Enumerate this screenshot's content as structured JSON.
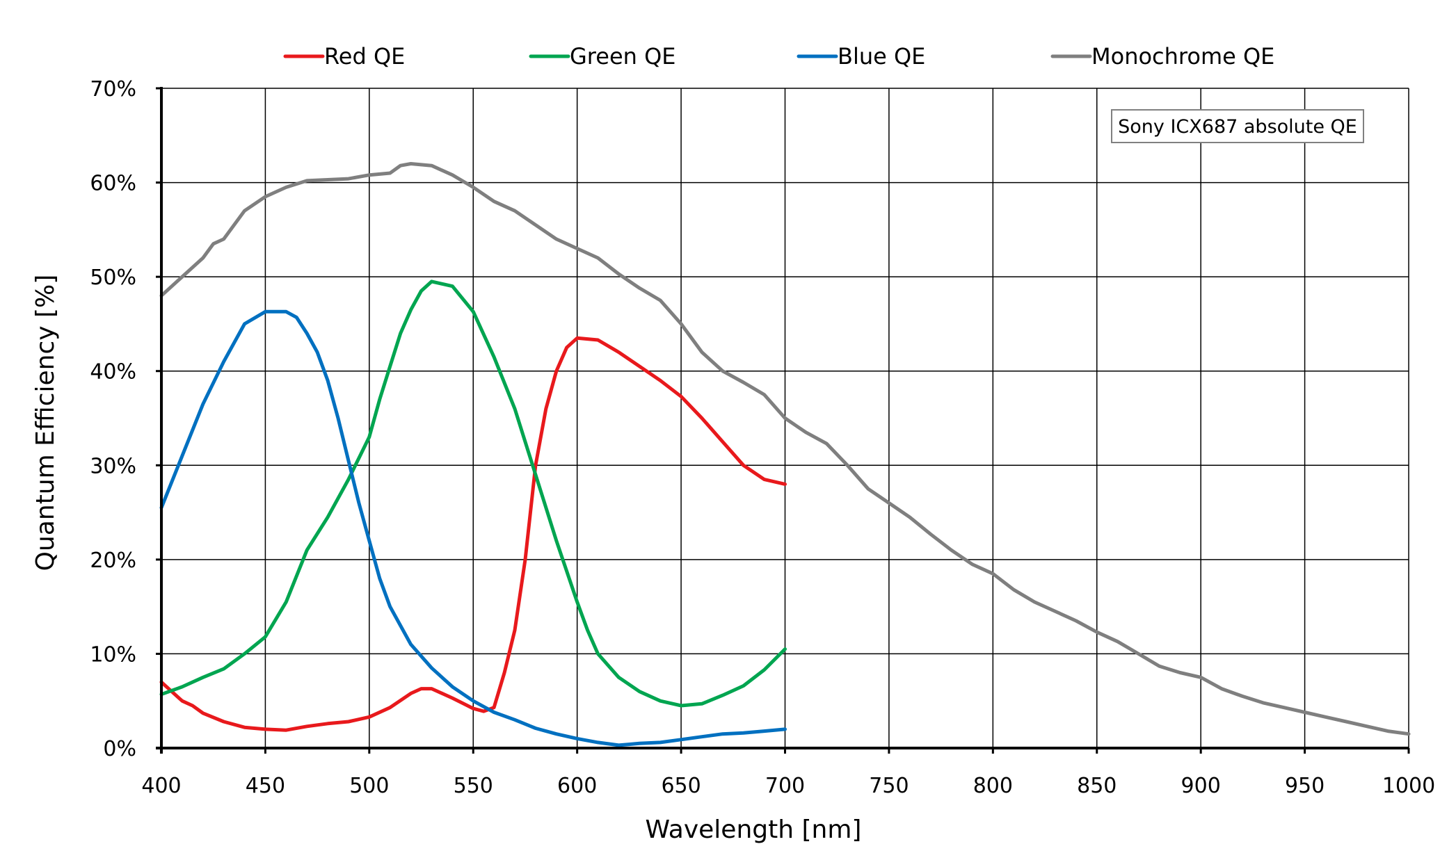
{
  "chart_data": {
    "type": "line",
    "title": "",
    "xlabel": "Wavelength [nm]",
    "ylabel": "Quantum Efficiency [%]",
    "xlim": [
      400,
      1000
    ],
    "ylim": [
      0,
      70
    ],
    "x_ticks": [
      "400",
      "450",
      "500",
      "550",
      "600",
      "650",
      "700",
      "750",
      "800",
      "850",
      "900",
      "950",
      "1000"
    ],
    "y_ticks": [
      "0%",
      "10%",
      "20%",
      "30%",
      "40%",
      "50%",
      "60%",
      "70%"
    ],
    "grid": true,
    "legend_position": "top",
    "annotation": "Sony ICX687 absolute QE",
    "series": [
      {
        "name": "Red QE",
        "color": "#e8191c",
        "points": [
          [
            400,
            7.0
          ],
          [
            405,
            6.0
          ],
          [
            410,
            5.0
          ],
          [
            415,
            4.5
          ],
          [
            420,
            3.7
          ],
          [
            430,
            2.8
          ],
          [
            440,
            2.2
          ],
          [
            450,
            2.0
          ],
          [
            460,
            1.9
          ],
          [
            470,
            2.3
          ],
          [
            480,
            2.6
          ],
          [
            490,
            2.8
          ],
          [
            500,
            3.3
          ],
          [
            510,
            4.3
          ],
          [
            520,
            5.8
          ],
          [
            525,
            6.3
          ],
          [
            530,
            6.3
          ],
          [
            540,
            5.3
          ],
          [
            550,
            4.2
          ],
          [
            555,
            3.9
          ],
          [
            560,
            4.3
          ],
          [
            565,
            8.0
          ],
          [
            570,
            12.5
          ],
          [
            575,
            20.0
          ],
          [
            580,
            30.0
          ],
          [
            585,
            36.0
          ],
          [
            590,
            40.0
          ],
          [
            595,
            42.5
          ],
          [
            600,
            43.5
          ],
          [
            610,
            43.3
          ],
          [
            620,
            42.0
          ],
          [
            630,
            40.5
          ],
          [
            640,
            39.0
          ],
          [
            650,
            37.3
          ],
          [
            660,
            35.0
          ],
          [
            670,
            32.5
          ],
          [
            680,
            30.0
          ],
          [
            690,
            28.5
          ],
          [
            700,
            28.0
          ]
        ]
      },
      {
        "name": "Green QE",
        "color": "#00a550",
        "points": [
          [
            400,
            5.7
          ],
          [
            410,
            6.5
          ],
          [
            420,
            7.5
          ],
          [
            430,
            8.4
          ],
          [
            440,
            10.0
          ],
          [
            450,
            11.8
          ],
          [
            460,
            15.5
          ],
          [
            470,
            21.0
          ],
          [
            480,
            24.5
          ],
          [
            490,
            28.5
          ],
          [
            500,
            33.0
          ],
          [
            505,
            37.0
          ],
          [
            510,
            40.5
          ],
          [
            515,
            44.0
          ],
          [
            520,
            46.5
          ],
          [
            525,
            48.5
          ],
          [
            530,
            49.5
          ],
          [
            540,
            49.0
          ],
          [
            550,
            46.3
          ],
          [
            560,
            41.5
          ],
          [
            570,
            36.0
          ],
          [
            580,
            29.0
          ],
          [
            590,
            22.0
          ],
          [
            600,
            15.5
          ],
          [
            605,
            12.5
          ],
          [
            610,
            10.0
          ],
          [
            620,
            7.5
          ],
          [
            630,
            6.0
          ],
          [
            640,
            5.0
          ],
          [
            650,
            4.5
          ],
          [
            660,
            4.7
          ],
          [
            670,
            5.6
          ],
          [
            680,
            6.6
          ],
          [
            690,
            8.3
          ],
          [
            700,
            10.5
          ]
        ]
      },
      {
        "name": "Blue QE",
        "color": "#0070c0",
        "points": [
          [
            400,
            25.5
          ],
          [
            410,
            31.0
          ],
          [
            420,
            36.5
          ],
          [
            430,
            41.0
          ],
          [
            440,
            45.0
          ],
          [
            450,
            46.3
          ],
          [
            460,
            46.3
          ],
          [
            465,
            45.7
          ],
          [
            470,
            44.0
          ],
          [
            475,
            42.0
          ],
          [
            480,
            39.0
          ],
          [
            485,
            35.0
          ],
          [
            490,
            30.5
          ],
          [
            495,
            26.0
          ],
          [
            500,
            22.0
          ],
          [
            505,
            18.0
          ],
          [
            510,
            15.0
          ],
          [
            520,
            11.0
          ],
          [
            530,
            8.5
          ],
          [
            540,
            6.5
          ],
          [
            550,
            5.0
          ],
          [
            560,
            3.8
          ],
          [
            570,
            3.0
          ],
          [
            580,
            2.1
          ],
          [
            590,
            1.5
          ],
          [
            600,
            1.0
          ],
          [
            610,
            0.6
          ],
          [
            620,
            0.3
          ],
          [
            625,
            0.4
          ],
          [
            630,
            0.5
          ],
          [
            640,
            0.6
          ],
          [
            650,
            0.9
          ],
          [
            660,
            1.2
          ],
          [
            670,
            1.5
          ],
          [
            680,
            1.6
          ],
          [
            690,
            1.8
          ],
          [
            700,
            2.0
          ]
        ]
      },
      {
        "name": "Monochrome QE",
        "color": "#7f7f7f",
        "points": [
          [
            400,
            48.0
          ],
          [
            410,
            50.0
          ],
          [
            420,
            52.0
          ],
          [
            425,
            53.5
          ],
          [
            430,
            54.0
          ],
          [
            440,
            57.0
          ],
          [
            450,
            58.5
          ],
          [
            460,
            59.5
          ],
          [
            470,
            60.2
          ],
          [
            480,
            60.3
          ],
          [
            490,
            60.4
          ],
          [
            500,
            60.8
          ],
          [
            510,
            61.0
          ],
          [
            515,
            61.8
          ],
          [
            520,
            62.0
          ],
          [
            530,
            61.8
          ],
          [
            540,
            60.8
          ],
          [
            550,
            59.5
          ],
          [
            560,
            58.0
          ],
          [
            570,
            57.0
          ],
          [
            580,
            55.5
          ],
          [
            590,
            54.0
          ],
          [
            600,
            53.0
          ],
          [
            610,
            52.0
          ],
          [
            620,
            50.3
          ],
          [
            630,
            48.8
          ],
          [
            640,
            47.5
          ],
          [
            650,
            45.0
          ],
          [
            660,
            42.0
          ],
          [
            670,
            40.0
          ],
          [
            680,
            38.8
          ],
          [
            690,
            37.5
          ],
          [
            700,
            35.0
          ],
          [
            710,
            33.5
          ],
          [
            720,
            32.3
          ],
          [
            730,
            30.0
          ],
          [
            740,
            27.5
          ],
          [
            750,
            26.0
          ],
          [
            760,
            24.5
          ],
          [
            770,
            22.7
          ],
          [
            780,
            21.0
          ],
          [
            790,
            19.5
          ],
          [
            800,
            18.5
          ],
          [
            810,
            16.8
          ],
          [
            820,
            15.5
          ],
          [
            830,
            14.5
          ],
          [
            840,
            13.5
          ],
          [
            850,
            12.3
          ],
          [
            860,
            11.3
          ],
          [
            870,
            10.0
          ],
          [
            880,
            8.7
          ],
          [
            890,
            8.0
          ],
          [
            900,
            7.5
          ],
          [
            910,
            6.3
          ],
          [
            920,
            5.5
          ],
          [
            930,
            4.8
          ],
          [
            940,
            4.3
          ],
          [
            950,
            3.8
          ],
          [
            960,
            3.3
          ],
          [
            970,
            2.8
          ],
          [
            980,
            2.3
          ],
          [
            990,
            1.8
          ],
          [
            1000,
            1.5
          ]
        ]
      }
    ]
  }
}
